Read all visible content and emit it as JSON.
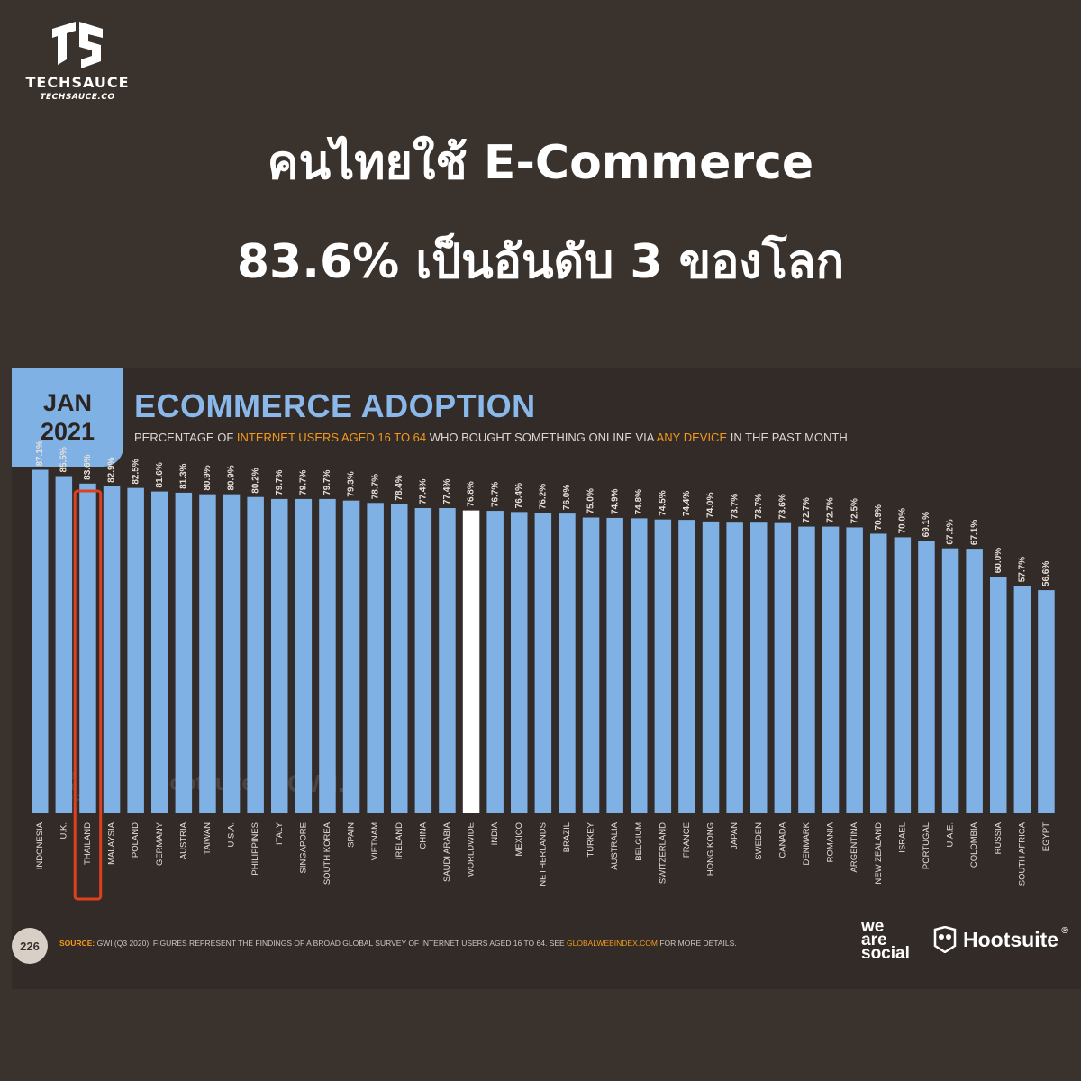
{
  "brand": {
    "name": "TECHSAUCE",
    "url": "TECHSAUCE.CO"
  },
  "headline": {
    "line1": "คนไทยใช้ E-Commerce",
    "line2": "83.6% เป็นอันดับ 3 ของโลก"
  },
  "badge": {
    "month": "JAN",
    "year": "2021"
  },
  "chart_header": {
    "title": "ECOMMERCE ADOPTION",
    "sub_part1": "PERCENTAGE OF ",
    "sub_hl1": "INTERNET USERS AGED 16 TO 64",
    "sub_part2": " WHO BOUGHT SOMETHING ONLINE VIA ",
    "sub_hl2": "ANY DEVICE",
    "sub_part3": " IN THE PAST MONTH"
  },
  "footer": {
    "page": "226",
    "source_label": "SOURCE:",
    "source_text1": " GWI (Q3 2020). FIGURES REPRESENT THE FINDINGS OF A BROAD GLOBAL SURVEY OF INTERNET USERS AGED 16 TO 64. SEE ",
    "source_link": "GLOBALWEBINDEX.COM",
    "source_text2": " FOR MORE DETAILS.",
    "logo1_line1": "we",
    "logo1_line2": "are",
    "logo1_line3": "social",
    "logo2": "Hootsuite",
    "logo2_mark": "®"
  },
  "watermarks": {
    "w1": "we are social",
    "w2": "Hootsuite",
    "w3": "GWI."
  },
  "colors": {
    "bar": "#7fb1e5",
    "highlight_bar": "#ffffff",
    "highlight_box": "#e0401f",
    "accent": "#f39a1e"
  },
  "chart_data": {
    "type": "bar",
    "title": "ECOMMERCE ADOPTION",
    "ylim": [
      0,
      100
    ],
    "highlight_category": "THAILAND",
    "white_bar_category": "WORLDWIDE",
    "categories": [
      "INDONESIA",
      "U.K.",
      "THAILAND",
      "MALAYSIA",
      "POLAND",
      "GERMANY",
      "AUSTRIA",
      "TAIWAN",
      "U.S.A.",
      "PHILIPPINES",
      "ITALY",
      "SINGAPORE",
      "SOUTH KOREA",
      "SPAIN",
      "VIETNAM",
      "IRELAND",
      "CHINA",
      "SAUDI ARABIA",
      "WORLDWIDE",
      "INDIA",
      "MEXICO",
      "NETHERLANDS",
      "BRAZIL",
      "TURKEY",
      "AUSTRALIA",
      "BELGIUM",
      "SWITZERLAND",
      "FRANCE",
      "HONG KONG",
      "JAPAN",
      "SWEDEN",
      "CANADA",
      "DENMARK",
      "ROMANIA",
      "ARGENTINA",
      "NEW ZEALAND",
      "ISRAEL",
      "PORTUGAL",
      "U.A.E.",
      "COLOMBIA",
      "RUSSIA",
      "SOUTH AFRICA",
      "EGYPT"
    ],
    "values": [
      87.1,
      85.5,
      83.6,
      82.9,
      82.5,
      81.6,
      81.3,
      80.9,
      80.9,
      80.2,
      79.7,
      79.7,
      79.7,
      79.3,
      78.7,
      78.4,
      77.4,
      77.4,
      76.8,
      76.7,
      76.4,
      76.2,
      76.0,
      75.0,
      74.9,
      74.8,
      74.5,
      74.4,
      74.0,
      73.7,
      73.7,
      73.6,
      72.7,
      72.7,
      72.5,
      70.9,
      70.0,
      69.1,
      67.2,
      67.1,
      60.0,
      57.7,
      56.6
    ],
    "labels": [
      "87.1%",
      "85.5%",
      "83.6%",
      "82.9%",
      "82.5%",
      "81.6%",
      "81.3%",
      "80.9%",
      "80.9%",
      "80.2%",
      "79.7%",
      "79.7%",
      "79.7%",
      "79.3%",
      "78.7%",
      "78.4%",
      "77.4%",
      "77.4%",
      "76.8%",
      "76.7%",
      "76.4%",
      "76.2%",
      "76.0%",
      "75.0%",
      "74.9%",
      "74.8%",
      "74.5%",
      "74.4%",
      "74.0%",
      "73.7%",
      "73.7%",
      "73.6%",
      "72.7%",
      "72.7%",
      "72.5%",
      "70.9%",
      "70.0%",
      "69.1%",
      "67.2%",
      "67.1%",
      "60.0%",
      "57.7%",
      "56.6%"
    ]
  }
}
